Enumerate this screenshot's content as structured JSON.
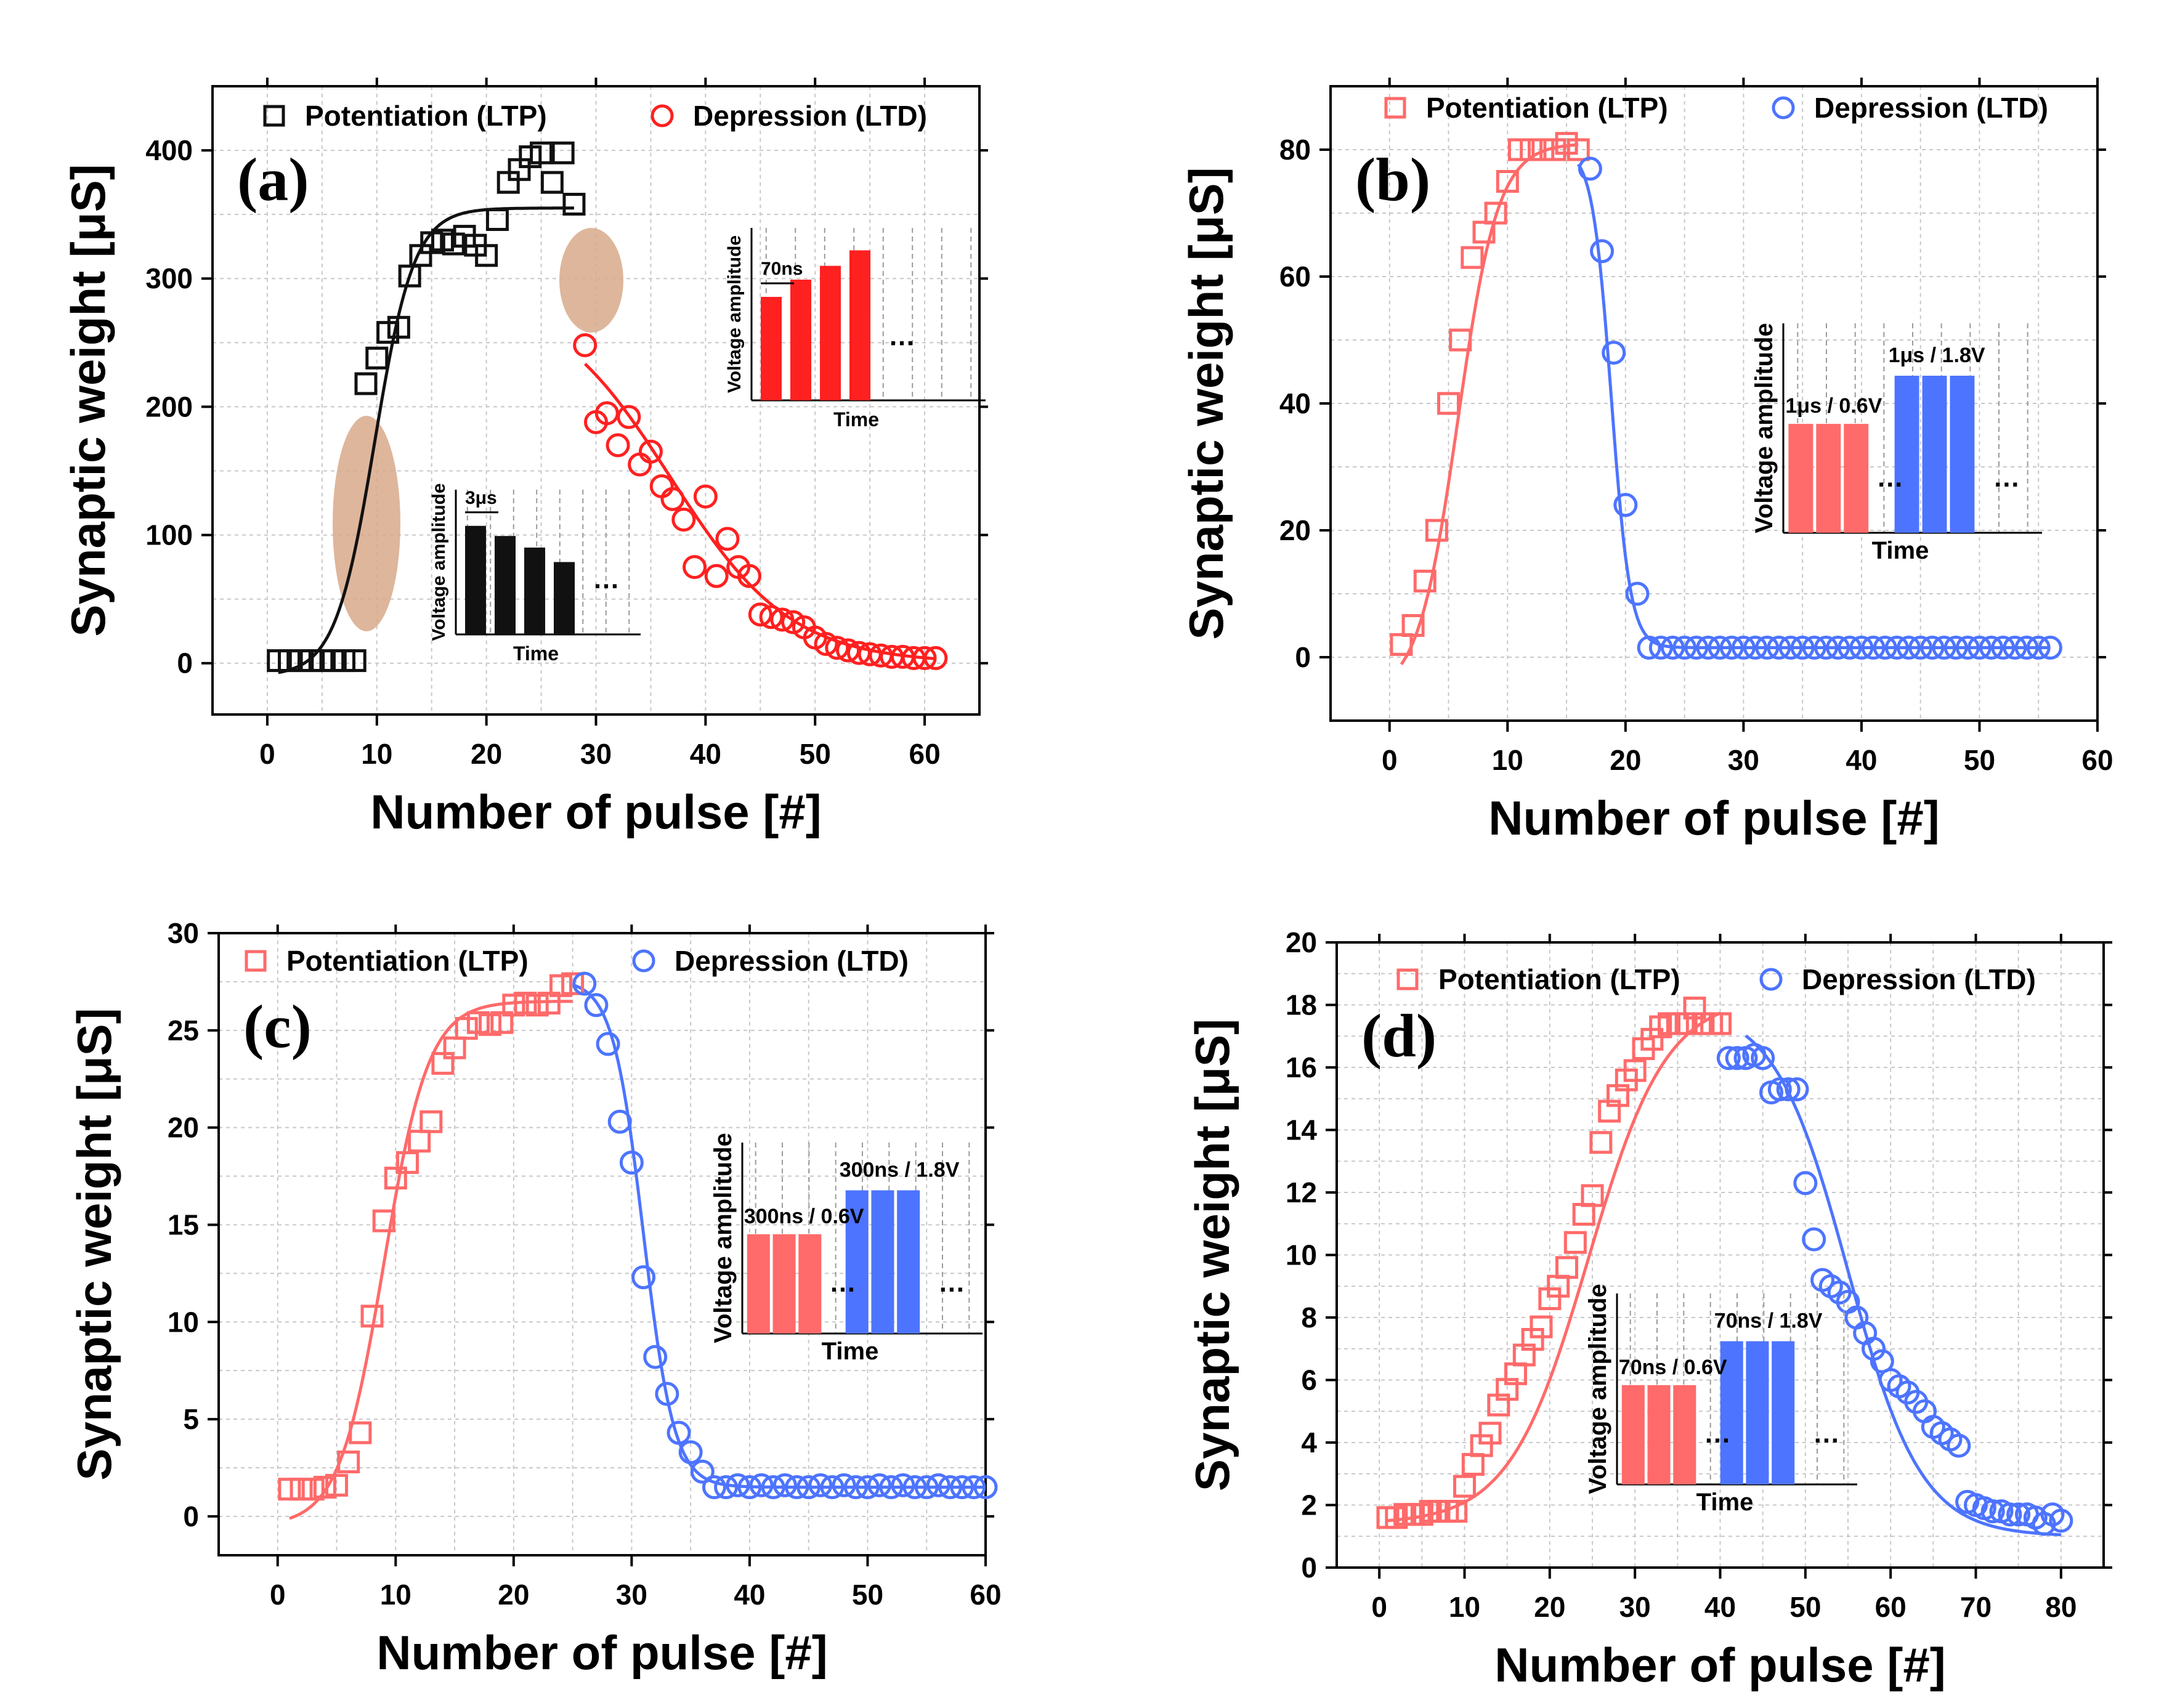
{
  "figure": {
    "colors": {
      "axis": "#000000",
      "grid": "#c8c8c8",
      "ltp_black": "#111111",
      "ltd_red": "#ff2020",
      "ltp_red": "#ff6a6a",
      "ltd_blue": "#4d74ff",
      "ellipse": "#d8a98a",
      "inset_grid": "#9a9a9a"
    }
  },
  "chart_data": [
    {
      "id": "a",
      "type": "scatter",
      "panel_label": "(a)",
      "xlabel": "Number of pulse [#]",
      "ylabel": "Synaptic weight [μS]",
      "xlim": [
        -5,
        65
      ],
      "ylim": [
        -40,
        450
      ],
      "xticks": [
        0,
        10,
        20,
        30,
        40,
        50,
        60
      ],
      "yticks": [
        0,
        100,
        200,
        300,
        400
      ],
      "grid": true,
      "legend": {
        "position": "top",
        "entries": [
          "Potentiation (LTP)",
          "Depression (LTD)"
        ]
      },
      "series": [
        {
          "name": "Potentiation (LTP)",
          "marker": "square",
          "color": "#111111",
          "x": [
            1,
            2,
            3,
            4,
            5,
            6,
            7,
            8,
            9,
            10,
            11,
            12,
            13,
            14,
            15,
            16,
            17,
            18,
            19,
            20,
            21,
            22,
            23,
            24,
            25,
            26,
            27,
            28
          ],
          "y": [
            2,
            2,
            2,
            2,
            2,
            2,
            2,
            2,
            218,
            238,
            258,
            262,
            302,
            318,
            328,
            330,
            327,
            333,
            326,
            318,
            346,
            375,
            385,
            395,
            398,
            375,
            398,
            358
          ]
        },
        {
          "name": "Depression (LTD)",
          "marker": "circle",
          "color": "#ff2020",
          "x": [
            29,
            30,
            31,
            32,
            33,
            34,
            35,
            36,
            37,
            38,
            39,
            40,
            41,
            42,
            43,
            44,
            45,
            46,
            47,
            48,
            49,
            50,
            51,
            52,
            53,
            54,
            55,
            56,
            57,
            58,
            59,
            60,
            61
          ],
          "y": [
            248,
            188,
            195,
            170,
            192,
            155,
            165,
            138,
            128,
            112,
            75,
            130,
            68,
            97,
            75,
            68,
            38,
            36,
            34,
            32,
            28,
            20,
            15,
            12,
            10,
            8,
            7,
            6,
            5,
            5,
            4,
            4,
            4
          ]
        }
      ],
      "fits": [
        {
          "type": "sigmoid",
          "color": "#111111",
          "x_range": [
            1,
            28
          ],
          "A1": -10,
          "A2": 355,
          "x0": 9.8,
          "dx": 1.8
        },
        {
          "type": "sigmoid",
          "color": "#ff2020",
          "x_range": [
            29,
            61
          ],
          "A1": 290,
          "A2": 0,
          "x0": 36.8,
          "dx": 5.5
        }
      ],
      "inset_ltp": {
        "ylabel": "Voltage amplitude",
        "xlabel": "Time",
        "annotation": "3μs",
        "ellipsis": "…",
        "pulse_heights": [
          0.75,
          0.68,
          0.6,
          0.5
        ],
        "pulse_color": "#111111"
      },
      "inset_ltd": {
        "ylabel": "Voltage amplitude",
        "xlabel": "Time",
        "annotation": "70ns",
        "ellipsis": "…",
        "pulse_heights": [
          0.6,
          0.7,
          0.78,
          0.87
        ],
        "pulse_color": "#ff2020"
      }
    },
    {
      "id": "b",
      "type": "scatter",
      "panel_label": "(b)",
      "xlabel": "Number of pulse [#]",
      "ylabel": "Synaptic weight [μS]",
      "xlim": [
        -5,
        60
      ],
      "ylim": [
        -10,
        90
      ],
      "xticks": [
        0,
        10,
        20,
        30,
        40,
        50,
        60
      ],
      "yticks": [
        0,
        20,
        40,
        60,
        80
      ],
      "grid": true,
      "legend": {
        "position": "top",
        "entries": [
          "Potentiation (LTP)",
          "Depression (LTD)"
        ]
      },
      "series": [
        {
          "name": "Potentiation (LTP)",
          "marker": "square",
          "color": "#ff6a6a",
          "x": [
            1,
            2,
            3,
            4,
            5,
            6,
            7,
            8,
            9,
            10,
            11,
            12,
            13,
            14,
            15,
            16
          ],
          "y": [
            2,
            5,
            12,
            20,
            40,
            50,
            63,
            67,
            70,
            75,
            80,
            80,
            80,
            80,
            81,
            80
          ]
        },
        {
          "name": "Depression (LTD)",
          "marker": "circle",
          "color": "#4d74ff",
          "x": [
            17,
            18,
            19,
            20,
            21,
            22,
            23,
            24,
            25,
            26,
            27,
            28,
            29,
            30,
            31,
            32,
            33,
            34,
            35,
            36,
            37,
            38,
            39,
            40,
            41,
            42,
            43,
            44,
            45,
            46,
            47,
            48,
            49,
            50,
            51,
            52,
            53,
            54,
            55,
            56
          ],
          "y": [
            77,
            64,
            48,
            24,
            10,
            1.5,
            1.5,
            1.5,
            1.5,
            1.5,
            1.5,
            1.5,
            1.5,
            1.5,
            1.5,
            1.5,
            1.5,
            1.5,
            1.5,
            1.5,
            1.5,
            1.5,
            1.5,
            1.5,
            1.5,
            1.5,
            1.5,
            1.5,
            1.5,
            1.5,
            1.5,
            1.5,
            1.5,
            1.5,
            1.5,
            1.5,
            1.5,
            1.5,
            1.5,
            1.5
          ]
        }
      ],
      "fits": [
        {
          "type": "sigmoid",
          "color": "#ff6a6a",
          "x_range": [
            1,
            16
          ],
          "A1": -6,
          "A2": 81,
          "x0": 5.8,
          "dx": 1.7
        },
        {
          "type": "sigmoid",
          "color": "#4d74ff",
          "x_range": [
            16,
            56
          ],
          "A1": 80,
          "A2": 1.5,
          "x0": 18.8,
          "dx": 0.8
        }
      ],
      "inset": {
        "ylabel": "Voltage amplitude",
        "xlabel": "Time",
        "ltp_label": "1μs / 0.6V",
        "ltd_label": "1μs / 1.8V",
        "ellipsis": "…"
      }
    },
    {
      "id": "c",
      "type": "scatter",
      "panel_label": "(c)",
      "xlabel": "Number of pulse [#]",
      "ylabel": "Synaptic weight [μS]",
      "xlim": [
        -5,
        60
      ],
      "ylim": [
        -2,
        30
      ],
      "xticks": [
        0,
        10,
        20,
        30,
        40,
        50,
        60
      ],
      "yticks": [
        0,
        5,
        10,
        15,
        20,
        25,
        30
      ],
      "grid": true,
      "legend": {
        "position": "top",
        "entries": [
          "Potentiation (LTP)",
          "Depression (LTD)"
        ]
      },
      "series": [
        {
          "name": "Potentiation (LTP)",
          "marker": "square",
          "color": "#ff6a6a",
          "x": [
            1,
            2,
            3,
            4,
            5,
            6,
            7,
            8,
            9,
            10,
            11,
            12,
            13,
            14,
            15,
            16,
            17,
            18,
            19,
            20,
            21,
            22,
            23,
            24,
            25
          ],
          "y": [
            1.4,
            1.4,
            1.4,
            1.5,
            1.6,
            2.8,
            4.3,
            10.3,
            15.2,
            17.4,
            18.2,
            19.3,
            20.3,
            23.3,
            24.1,
            25.1,
            25.4,
            25.3,
            25.4,
            26.3,
            26.4,
            26.3,
            26.4,
            27.3,
            27.4
          ]
        },
        {
          "name": "Depression (LTD)",
          "marker": "circle",
          "color": "#4d74ff",
          "x": [
            26,
            27,
            28,
            29,
            30,
            31,
            32,
            33,
            34,
            35,
            36,
            37,
            38,
            39,
            40,
            41,
            42,
            43,
            44,
            45,
            46,
            47,
            48,
            49,
            50,
            51,
            52,
            53,
            54,
            55,
            56,
            57,
            58,
            59,
            60
          ],
          "y": [
            27.4,
            26.3,
            24.3,
            20.3,
            18.2,
            12.3,
            8.2,
            6.3,
            4.3,
            3.3,
            2.3,
            1.5,
            1.5,
            1.6,
            1.5,
            1.6,
            1.5,
            1.6,
            1.5,
            1.5,
            1.6,
            1.5,
            1.6,
            1.5,
            1.5,
            1.6,
            1.5,
            1.6,
            1.5,
            1.5,
            1.6,
            1.5,
            1.5,
            1.5,
            1.5
          ]
        }
      ],
      "fits": [
        {
          "type": "sigmoid",
          "color": "#ff6a6a",
          "x_range": [
            1,
            25
          ],
          "A1": -0.5,
          "A2": 26.5,
          "x0": 9.0,
          "dx": 1.9
        },
        {
          "type": "sigmoid",
          "color": "#4d74ff",
          "x_range": [
            25,
            60
          ],
          "A1": 27.6,
          "A2": 1.5,
          "x0": 31.0,
          "dx": 1.3
        }
      ],
      "inset": {
        "ylabel": "Voltage amplitude",
        "xlabel": "Time",
        "ltp_label": "300ns / 0.6V",
        "ltd_label": "300ns / 1.8V",
        "ellipsis": "…"
      }
    },
    {
      "id": "d",
      "type": "scatter",
      "panel_label": "(d)",
      "xlabel": "Number of pulse [#]",
      "ylabel": "Synaptic weight [μS]",
      "xlim": [
        -5,
        85
      ],
      "ylim": [
        0,
        20
      ],
      "xticks": [
        0,
        10,
        20,
        30,
        40,
        50,
        60,
        70,
        80
      ],
      "yticks": [
        0,
        2,
        4,
        6,
        8,
        10,
        12,
        14,
        16,
        18,
        20
      ],
      "grid": true,
      "legend": {
        "position": "top",
        "entries": [
          "Potentiation (LTP)",
          "Depression (LTD)"
        ]
      },
      "series": [
        {
          "name": "Potentiation (LTP)",
          "marker": "square",
          "color": "#ff6a6a",
          "x": [
            1,
            2,
            3,
            4,
            5,
            6,
            7,
            8,
            9,
            10,
            11,
            12,
            13,
            14,
            15,
            16,
            17,
            18,
            19,
            20,
            21,
            22,
            23,
            24,
            25,
            26,
            27,
            28,
            29,
            30,
            31,
            32,
            33,
            34,
            35,
            36,
            37,
            38,
            39,
            40
          ],
          "y": [
            1.6,
            1.6,
            1.7,
            1.7,
            1.7,
            1.8,
            1.8,
            1.8,
            1.8,
            2.6,
            3.3,
            3.9,
            4.3,
            5.2,
            5.7,
            6.2,
            6.8,
            7.3,
            7.7,
            8.6,
            9.0,
            9.6,
            10.4,
            11.3,
            11.9,
            13.6,
            14.6,
            15.1,
            15.6,
            15.9,
            16.6,
            16.9,
            17.3,
            17.4,
            17.4,
            17.4,
            17.9,
            17.4,
            17.4,
            17.4
          ]
        },
        {
          "name": "Depression (LTD)",
          "marker": "circle",
          "color": "#4d74ff",
          "x": [
            41,
            42,
            43,
            44,
            45,
            46,
            47,
            48,
            49,
            50,
            51,
            52,
            53,
            54,
            55,
            56,
            57,
            58,
            59,
            60,
            61,
            62,
            63,
            64,
            65,
            66,
            67,
            68,
            69,
            70,
            71,
            72,
            73,
            74,
            75,
            76,
            77,
            78,
            79,
            80
          ],
          "y": [
            16.3,
            16.3,
            16.3,
            16.4,
            16.3,
            15.2,
            15.3,
            15.3,
            15.3,
            12.3,
            10.5,
            9.2,
            9.0,
            8.8,
            8.5,
            8.0,
            7.5,
            7.0,
            6.6,
            6.0,
            5.8,
            5.6,
            5.3,
            5.0,
            4.5,
            4.3,
            4.1,
            3.9,
            2.1,
            2.0,
            1.9,
            1.8,
            1.8,
            1.7,
            1.7,
            1.7,
            1.6,
            1.4,
            1.7,
            1.5
          ]
        }
      ],
      "fits": [
        {
          "type": "sigmoid",
          "color": "#ff6a6a",
          "x_range": [
            1,
            40
          ],
          "A1": 1.4,
          "A2": 18.3,
          "x0": 24.5,
          "dx": 4.6
        },
        {
          "type": "sigmoid",
          "color": "#4d74ff",
          "x_range": [
            43,
            80
          ],
          "A1": 18.0,
          "A2": 1.0,
          "x0": 55.0,
          "dx": 4.3
        }
      ],
      "inset": {
        "ylabel": "Voltage amplitude",
        "xlabel": "Time",
        "ltp_label": "70ns / 0.6V",
        "ltd_label": "70ns / 1.8V",
        "ellipsis": "…"
      }
    }
  ]
}
